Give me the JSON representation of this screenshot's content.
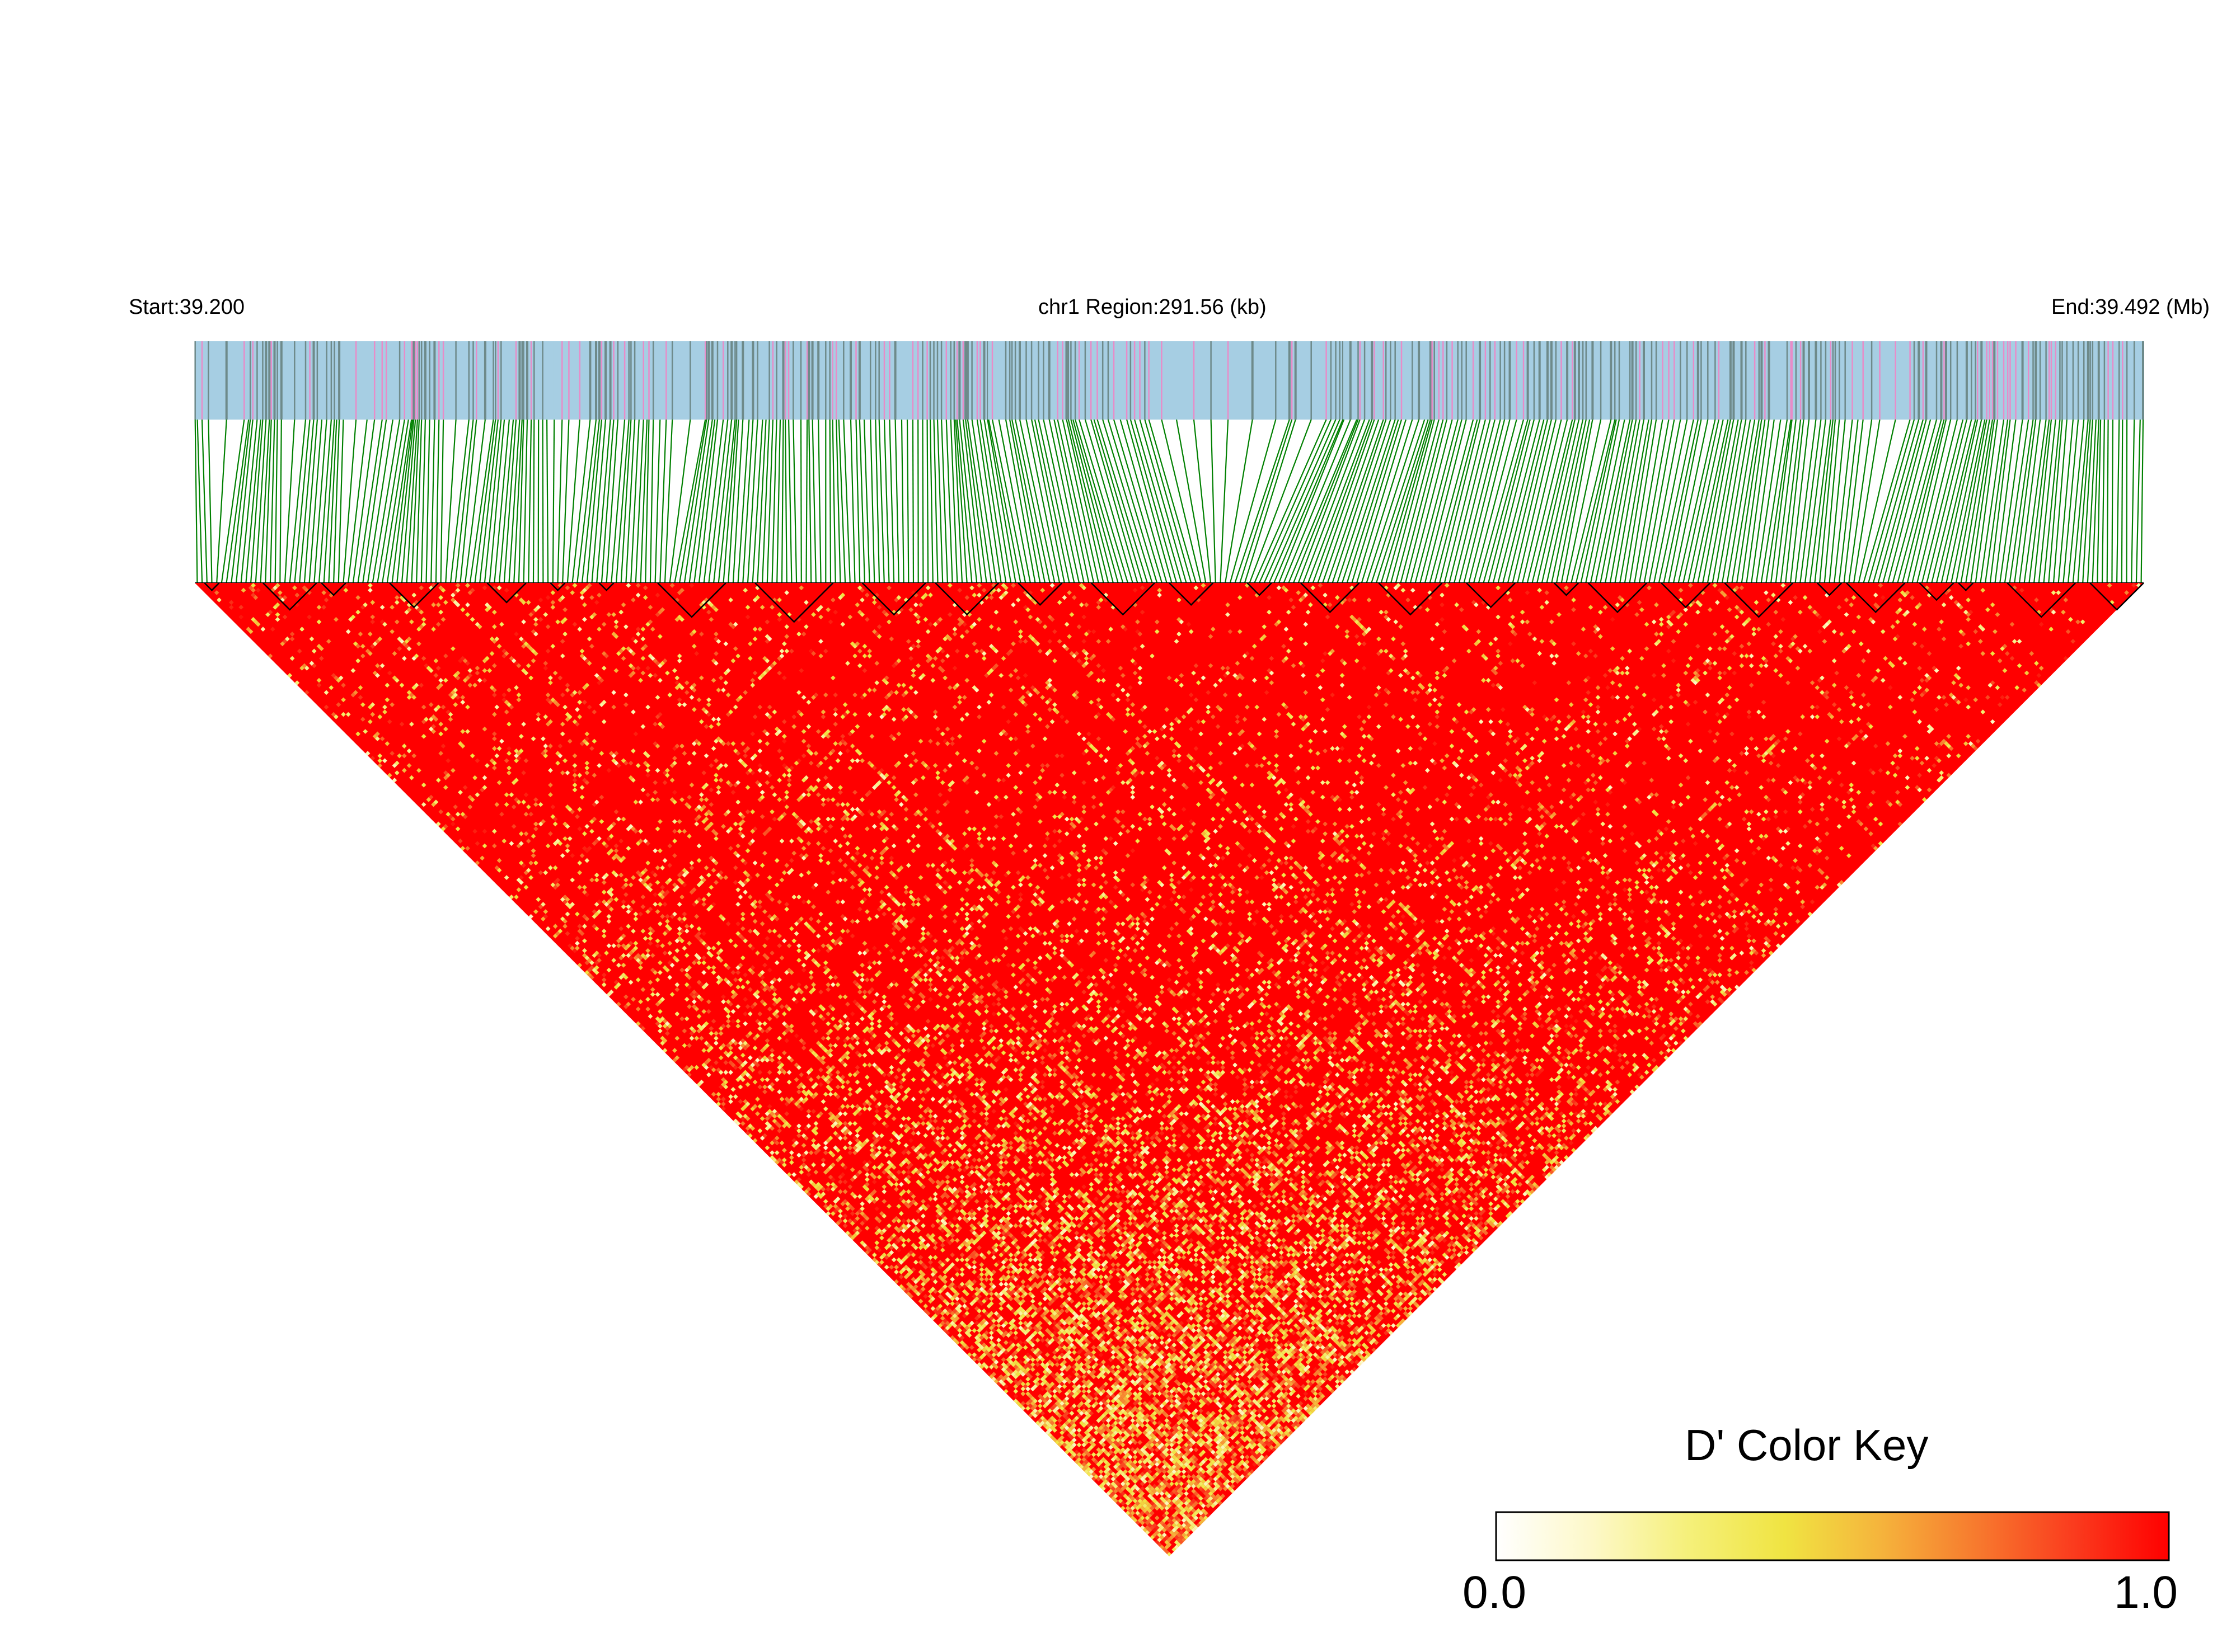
{
  "header": {
    "start_label": "Start:39.200",
    "region_label": "chr1 Region:291.56 (kb)",
    "end_label": "End:39.492 (Mb)"
  },
  "chart_data": {
    "type": "heatmap",
    "variant": "LD triangle heatmap",
    "region": {
      "chromosome": "chr1",
      "start_mb": 39.2,
      "end_mb": 39.492,
      "length_kb": 291.56
    },
    "snp_count_approx": 400,
    "value_metric": "D'",
    "value_range": [
      0.0,
      1.0
    ],
    "dominant_value_approx": 1.0,
    "haplotype_blocks_approx": 28,
    "colors": {
      "high": "#ff0000",
      "mid": "#f0e442",
      "low": "#ffffff",
      "track_bg": "#a6cee3",
      "track_snp_dark": "#6e8a8a",
      "track_snp_pink": "#e88cc8",
      "connector": "#008000",
      "block_outline": "#000000"
    },
    "color_key": {
      "title": "D' Color Key",
      "min_label": "0.0",
      "max_label": "1.0",
      "gradient": [
        "#ffffff",
        "#fdf8c8",
        "#f5f07a",
        "#f0e442",
        "#f5b43c",
        "#f77a2e",
        "#fa3c1e",
        "#ff0000"
      ]
    }
  }
}
